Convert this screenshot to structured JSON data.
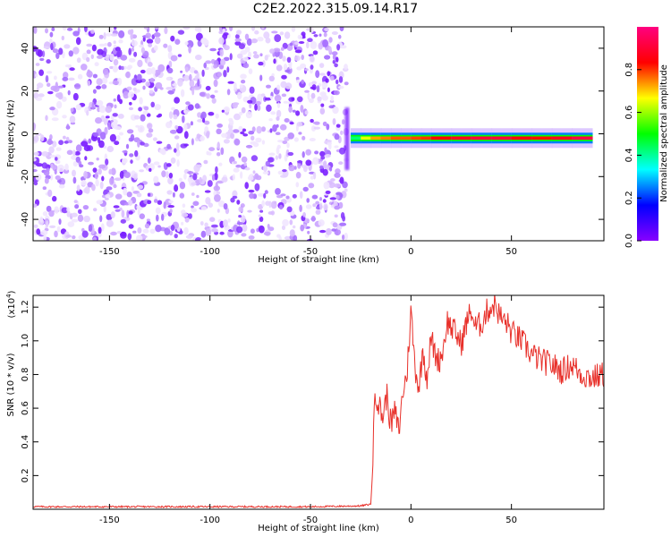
{
  "title": "C2E2.2022.315.09.14.R17",
  "colormap": {
    "stops": [
      "#8800ff",
      "#0000ff",
      "#00ffff",
      "#00ff00",
      "#ffff00",
      "#ff0000",
      "#ff0080"
    ]
  },
  "chart_data": [
    {
      "type": "heatmap",
      "xlabel": "Height of straight line (km)",
      "ylabel": "Frequency (Hz)",
      "xlim": [
        -188,
        96
      ],
      "ylim": [
        -50,
        50
      ],
      "xticks": [
        -150,
        -100,
        -50,
        0,
        50
      ],
      "yticks": [
        -40,
        -20,
        0,
        20,
        40
      ],
      "noise_region_x": [
        -188,
        -32
      ],
      "signal_band_center_hz": -2,
      "signal_band": [
        {
          "x": -30,
          "amp": 0.3
        },
        {
          "x": -25,
          "amp": 0.55
        },
        {
          "x": -20,
          "amp": 0.75
        },
        {
          "x": -15,
          "amp": 0.7
        },
        {
          "x": -10,
          "amp": 0.8
        },
        {
          "x": -5,
          "amp": 0.75
        },
        {
          "x": 0,
          "amp": 0.8
        },
        {
          "x": 5,
          "amp": 0.78
        },
        {
          "x": 10,
          "amp": 0.82
        },
        {
          "x": 20,
          "amp": 0.85
        },
        {
          "x": 30,
          "amp": 0.9
        },
        {
          "x": 40,
          "amp": 0.92
        },
        {
          "x": 50,
          "amp": 0.9
        },
        {
          "x": 60,
          "amp": 0.8
        },
        {
          "x": 70,
          "amp": 0.85
        },
        {
          "x": 80,
          "amp": 0.9
        },
        {
          "x": 90,
          "amp": 0.95
        }
      ],
      "colorbar": {
        "label": "Normalized spectral amplitude",
        "range": [
          0,
          1
        ],
        "ticks": [
          "0.0",
          "0.2",
          "0.4",
          "0.6",
          "0.8"
        ]
      }
    },
    {
      "type": "line",
      "xlabel": "Height of straight line (km)",
      "ylabel": "SNR (10 * v/v)",
      "scale_label": "(x10",
      "scale_exp": "4",
      "scale_close": ")",
      "xlim": [
        -188,
        96
      ],
      "ylim": [
        0,
        1.27
      ],
      "xticks": [
        -150,
        -100,
        -50,
        0,
        50
      ],
      "yticks": [
        "0.2",
        "0.4",
        "0.6",
        "0.8",
        "1.0",
        "1.2"
      ],
      "series": [
        {
          "color": "#e8302a",
          "x": [
            -188,
            -150,
            -100,
            -50,
            -25,
            -20,
            -19,
            -18,
            -16,
            -14,
            -12,
            -10,
            -8,
            -6,
            -4,
            -2,
            0,
            2,
            4,
            6,
            8,
            10,
            12,
            14,
            16,
            18,
            20,
            22,
            25,
            28,
            30,
            32,
            35,
            38,
            40,
            42,
            44,
            46,
            48,
            50,
            55,
            60,
            65,
            70,
            75,
            80,
            85,
            90,
            96
          ],
          "values": [
            0.015,
            0.015,
            0.015,
            0.015,
            0.02,
            0.03,
            0.25,
            0.72,
            0.62,
            0.55,
            0.68,
            0.5,
            0.58,
            0.46,
            0.7,
            0.8,
            1.18,
            0.85,
            0.72,
            0.95,
            0.78,
            1.02,
            0.92,
            0.88,
            0.95,
            1.12,
            1.08,
            1.05,
            0.98,
            1.12,
            1.18,
            1.08,
            1.1,
            1.18,
            1.2,
            1.22,
            1.15,
            1.12,
            1.1,
            1.05,
            1.0,
            0.92,
            0.88,
            0.86,
            0.82,
            0.86,
            0.8,
            0.78,
            0.8
          ]
        }
      ]
    }
  ]
}
